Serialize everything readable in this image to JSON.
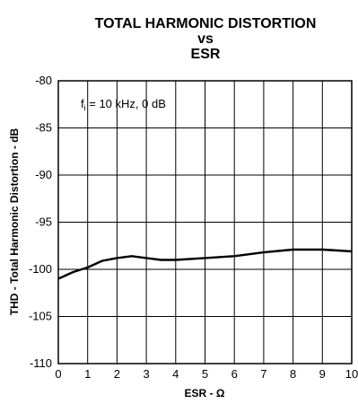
{
  "chart_data": {
    "type": "line",
    "title": [
      "TOTAL HARMONIC DISTORTION",
      "vs",
      "ESR"
    ],
    "xlabel": "ESR - Ω",
    "ylabel": "THD - Total Harmonic Distortion - dB",
    "annotation": {
      "main": "f",
      "sub": "i",
      "rest": " = 10 kHz, 0 dB"
    },
    "xlim": [
      0,
      10
    ],
    "ylim": [
      -110,
      -80
    ],
    "xticks": [
      "0",
      "1",
      "2",
      "3",
      "4",
      "5",
      "6",
      "7",
      "8",
      "9",
      "10"
    ],
    "yticks": [
      "-80",
      "-85",
      "-90",
      "-95",
      "-100",
      "-105",
      "-110"
    ],
    "grid": true,
    "series": [
      {
        "x": [
          0,
          0.5,
          1.0,
          1.5,
          2.0,
          2.5,
          3.0,
          3.5,
          4.0,
          5.0,
          6.0,
          7.0,
          8.0,
          9.0,
          10.0
        ],
        "y": [
          -101.0,
          -100.3,
          -99.8,
          -99.1,
          -98.8,
          -98.6,
          -98.8,
          -99.0,
          -99.0,
          -98.8,
          -98.6,
          -98.2,
          -97.9,
          -97.9,
          -98.1
        ]
      }
    ]
  }
}
